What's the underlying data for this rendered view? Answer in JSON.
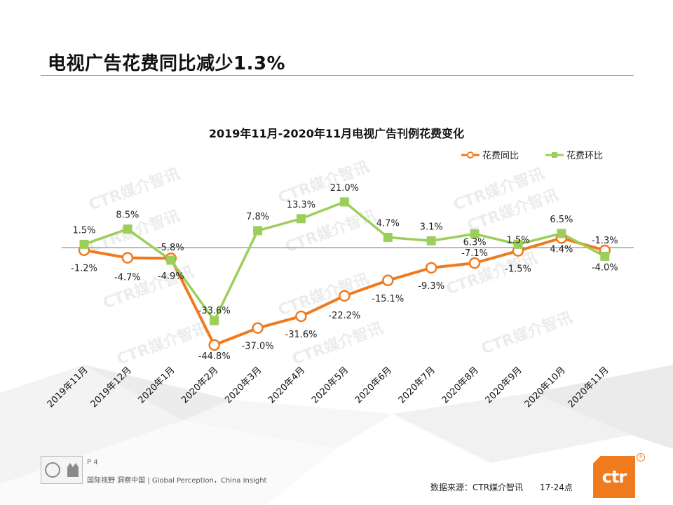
{
  "slide": {
    "title": "电视广告花费同比减少1.3%"
  },
  "watermark": "CTR媒介智讯",
  "footer": {
    "page": "P 4",
    "slogan": "国际视野 洞察中国 | Global Perception，China Insight",
    "source": "数据来源：CTR媒介智讯　　17-24点",
    "logo": "ctr",
    "logo_reg": "®"
  },
  "colors": {
    "yoy": "#f07a1e",
    "mom": "#9ccf5a",
    "accent": "#f07a1e"
  },
  "chart_data": {
    "type": "line",
    "title": "2019年11月-2020年11月电视广告刊例花费变化",
    "categories": [
      "2019年11月",
      "2019年12月",
      "2020年1月",
      "2020年2月",
      "2020年3月",
      "2020年4月",
      "2020年5月",
      "2020年6月",
      "2020年7月",
      "2020年8月",
      "2020年9月",
      "2020年10月",
      "2020年11月"
    ],
    "series": [
      {
        "name": "花费同比",
        "color": "#f07a1e",
        "marker": "circle",
        "values": [
          -1.2,
          -4.7,
          -4.9,
          -44.8,
          -37.0,
          -31.6,
          -22.2,
          -15.1,
          -9.3,
          -7.1,
          -1.5,
          4.4,
          -1.3
        ],
        "labels": [
          "-1.2%",
          "-4.7%",
          "-4.9%",
          "-44.8%",
          "-37.0%",
          "-31.6%",
          "-22.2%",
          "-15.1%",
          "-9.3%",
          "-7.1%",
          "-1.5%",
          "4.4%",
          "-1.3%"
        ]
      },
      {
        "name": "花费环比",
        "color": "#9ccf5a",
        "marker": "square",
        "values": [
          1.5,
          8.5,
          -5.8,
          -33.6,
          7.8,
          13.3,
          21.0,
          4.7,
          3.1,
          6.3,
          1.5,
          6.5,
          -4.0
        ],
        "labels": [
          "1.5%",
          "8.5%",
          "-5.8%",
          "-33.6%",
          "7.8%",
          "13.3%",
          "21.0%",
          "4.7%",
          "3.1%",
          "6.3%",
          "1.5%",
          "6.5%",
          "-4.0%"
        ]
      }
    ],
    "legend_position": "top-right",
    "grid": false,
    "zero_line": true
  }
}
